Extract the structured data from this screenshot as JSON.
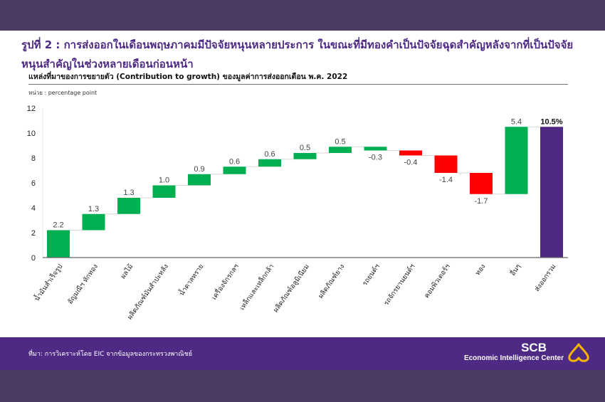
{
  "header": {
    "title": "รูปที่ 2 : การส่งออกในเดือนพฤษภาคมมีปัจจัยหนุนหลายประการ ในขณะที่มีทองคำเป็นปัจจัยฉุดสำคัญหลังจากที่เป็นปัจจัยหนุนสำคัญในช่วงหลายเดือนก่อนหน้า"
  },
  "chart_data": {
    "type": "waterfall",
    "title": "แหล่งที่มาของการขยายตัว (Contribution to growth) ของมูลค่าการส่งออกเดือน พ.ค. 2022",
    "unit_label": "หน่วย : percentage  point",
    "xlabel": "",
    "ylabel": "",
    "ylim": [
      0,
      12
    ],
    "yticks": [
      "0",
      "2",
      "4",
      "6",
      "8",
      "10",
      "12"
    ],
    "grid": false,
    "categories": [
      "น้ำมันสำเร็จรูป",
      "อัญมณีฯ หักทอง",
      "ผลไม้",
      "ผลิตภัณฑ์มันสำปะหลัง",
      "น้ำตาลทราย",
      "เครื่องจักรกลฯ",
      "เหล็กและเหล็กกล้า",
      "ผลิตภัณฑ์อลูมิเนียม",
      "ผลิตภัณฑ์ยาง",
      "รถยนต์ฯ",
      "รถจักรยานยนต์ฯ",
      "คอมพิวเตอร์ฯ",
      "ทอง",
      "อื่นๆ",
      "ส่งออกรวม"
    ],
    "values": [
      2.2,
      1.3,
      1.3,
      1.0,
      0.9,
      0.6,
      0.6,
      0.5,
      0.5,
      -0.3,
      -0.4,
      -1.4,
      -1.7,
      5.4,
      10.5
    ],
    "labels": [
      "2.2",
      "1.3",
      "1.3",
      "1.0",
      "0.9",
      "0.6",
      "0.6",
      "0.5",
      "0.5",
      "-0.3",
      "-0.4",
      "-1.4",
      "-1.7",
      "5.4",
      "10.5%"
    ],
    "bar_colors": [
      "#00b050",
      "#00b050",
      "#00b050",
      "#00b050",
      "#00b050",
      "#00b050",
      "#00b050",
      "#00b050",
      "#00b050",
      "#00b050",
      "#ff0000",
      "#ff0000",
      "#ff0000",
      "#00b050",
      "#4e2a84"
    ],
    "total_index": 14
  },
  "footer": {
    "source": "ที่มา: การวิเคราะห์โดย  EIC  จากข้อมูลของกระทรวงพาณิชย์",
    "brand": "SCB",
    "brand_sub": "Economic Intelligence Center"
  },
  "colors": {
    "brand_purple": "#4e2a84",
    "band_dark": "#4a3b61",
    "positive": "#00b050",
    "negative": "#ff0000",
    "logo_gold": "#f5b400"
  }
}
